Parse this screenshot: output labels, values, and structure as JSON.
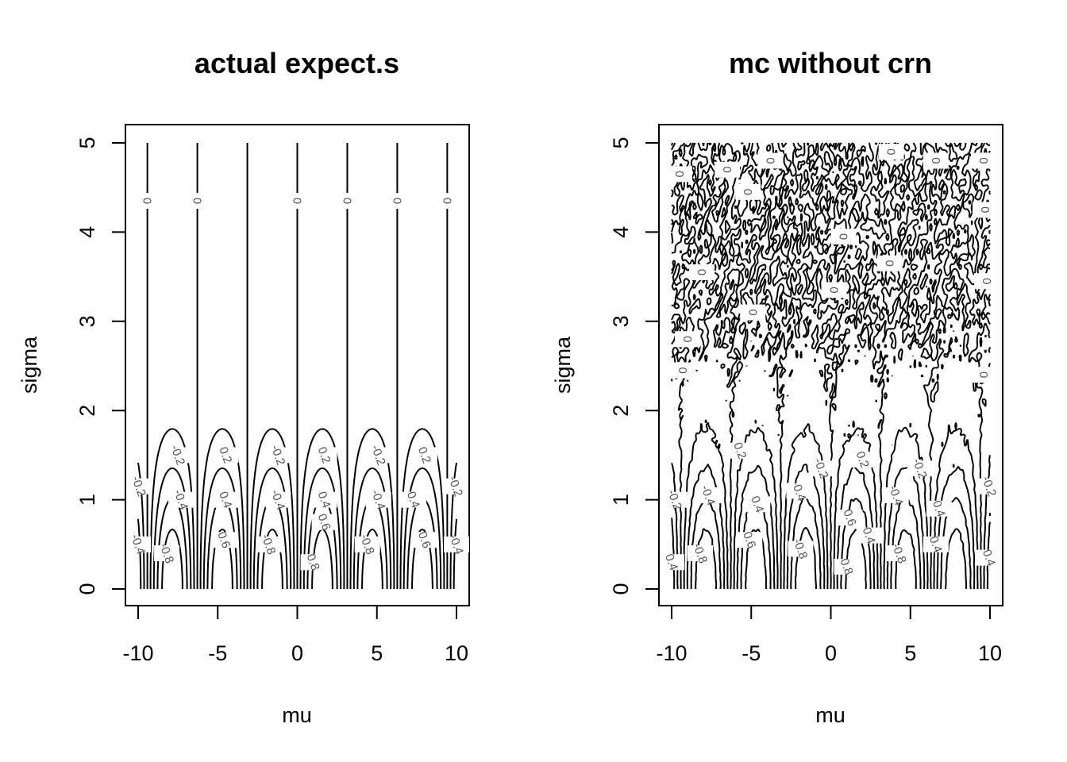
{
  "chart_data": [
    {
      "type": "contour",
      "title": "actual expect.s",
      "xlabel": "mu",
      "ylabel": "sigma",
      "xlim": [
        -10,
        10
      ],
      "ylim": [
        0,
        5
      ],
      "x_ticks": [
        -10,
        -5,
        0,
        5,
        10
      ],
      "y_ticks": [
        0,
        1,
        2,
        3,
        4,
        5
      ],
      "contour_levels": [
        -0.8,
        -0.6,
        -0.4,
        -0.2,
        0,
        0.2,
        0.4,
        0.6,
        0.8
      ],
      "grid": false,
      "zero_contour_mu": [
        -9.42,
        -6.28,
        -3.14,
        0,
        3.14,
        6.28,
        9.42
      ],
      "labels": [
        {
          "text": "0",
          "mu": -9.42,
          "sigma": 4.35
        },
        {
          "text": "0",
          "mu": -6.28,
          "sigma": 4.35
        },
        {
          "text": "0",
          "mu": 0,
          "sigma": 4.35
        },
        {
          "text": "0",
          "mu": 3.14,
          "sigma": 4.35
        },
        {
          "text": "0",
          "mu": 6.28,
          "sigma": 4.35
        },
        {
          "text": "0",
          "mu": 9.42,
          "sigma": 4.35
        },
        {
          "text": "-0.2",
          "mu": -7.5,
          "sigma": 1.5
        },
        {
          "text": "0.2",
          "mu": -4.5,
          "sigma": 1.5
        },
        {
          "text": "-0.2",
          "mu": -1.2,
          "sigma": 1.5
        },
        {
          "text": "0.2",
          "mu": 1.7,
          "sigma": 1.5
        },
        {
          "text": "-0.2",
          "mu": 5.1,
          "sigma": 1.5
        },
        {
          "text": "0.2",
          "mu": 8.0,
          "sigma": 1.5
        },
        {
          "text": "-0.2",
          "mu": -9.95,
          "sigma": 1.15
        },
        {
          "text": "-0.2",
          "mu": 9.95,
          "sigma": 1.15
        },
        {
          "text": "-0.4",
          "mu": -7.3,
          "sigma": 1.0
        },
        {
          "text": "0.4",
          "mu": -4.5,
          "sigma": 1.0
        },
        {
          "text": "-0.4",
          "mu": -1.2,
          "sigma": 1.0
        },
        {
          "text": "0.4",
          "mu": 1.7,
          "sigma": 1.0
        },
        {
          "text": "-0.4",
          "mu": 5.1,
          "sigma": 1.0
        },
        {
          "text": "0.4",
          "mu": 7.3,
          "sigma": 1.0
        },
        {
          "text": "-0.4",
          "mu": -10.0,
          "sigma": 0.5
        },
        {
          "text": "-0.4",
          "mu": 10.0,
          "sigma": 0.5
        },
        {
          "text": "0.6",
          "mu": -4.6,
          "sigma": 0.55
        },
        {
          "text": "0.6",
          "mu": 1.7,
          "sigma": 0.75
        },
        {
          "text": "0.6",
          "mu": 8.0,
          "sigma": 0.55
        },
        {
          "text": "0.8",
          "mu": 1.0,
          "sigma": 0.3
        },
        {
          "text": "-0.8",
          "mu": -8.2,
          "sigma": 0.4
        },
        {
          "text": "-0.8",
          "mu": -1.8,
          "sigma": 0.5
        },
        {
          "text": "-0.8",
          "mu": 4.4,
          "sigma": 0.5
        }
      ]
    },
    {
      "type": "contour",
      "title": "mc without crn",
      "xlabel": "mu",
      "ylabel": "sigma",
      "xlim": [
        -10,
        10
      ],
      "ylim": [
        0,
        5
      ],
      "x_ticks": [
        -10,
        -5,
        0,
        5,
        10
      ],
      "y_ticks": [
        0,
        1,
        2,
        3,
        4,
        5
      ],
      "contour_levels": [
        -0.8,
        -0.6,
        -0.4,
        -0.2,
        0,
        0.2,
        0.4,
        0.6,
        0.8
      ],
      "grid": false,
      "labels": [
        {
          "text": "0",
          "mu": -9.5,
          "sigma": 4.65
        },
        {
          "text": "0",
          "mu": -6.5,
          "sigma": 4.7
        },
        {
          "text": "0",
          "mu": -3.8,
          "sigma": 4.8
        },
        {
          "text": "0",
          "mu": 3.8,
          "sigma": 4.9
        },
        {
          "text": "0",
          "mu": 6.6,
          "sigma": 4.8
        },
        {
          "text": "0",
          "mu": 9.6,
          "sigma": 4.8
        },
        {
          "text": "0",
          "mu": -5.2,
          "sigma": 4.45
        },
        {
          "text": "0",
          "mu": 0.8,
          "sigma": 3.95
        },
        {
          "text": "0",
          "mu": 3.7,
          "sigma": 3.65
        },
        {
          "text": "0",
          "mu": 9.7,
          "sigma": 4.25
        },
        {
          "text": "0",
          "mu": -8.1,
          "sigma": 3.55
        },
        {
          "text": "0",
          "mu": -4.9,
          "sigma": 3.1
        },
        {
          "text": "0",
          "mu": 0.2,
          "sigma": 3.35
        },
        {
          "text": "0",
          "mu": 9.8,
          "sigma": 3.45
        },
        {
          "text": "0",
          "mu": -9.0,
          "sigma": 2.8
        },
        {
          "text": "0",
          "mu": -9.3,
          "sigma": 2.45
        },
        {
          "text": "0",
          "mu": 9.6,
          "sigma": 2.4
        },
        {
          "text": "-0.2",
          "mu": -9.8,
          "sigma": 1.0
        },
        {
          "text": "0.2",
          "mu": -5.7,
          "sigma": 1.55
        },
        {
          "text": "-0.2",
          "mu": -0.6,
          "sigma": 1.35
        },
        {
          "text": "0.2",
          "mu": 2.0,
          "sigma": 1.45
        },
        {
          "text": "-0.2",
          "mu": 5.6,
          "sigma": 1.35
        },
        {
          "text": "-0.2",
          "mu": 9.95,
          "sigma": 1.15
        },
        {
          "text": "-0.4",
          "mu": -7.7,
          "sigma": 1.05
        },
        {
          "text": "0.4",
          "mu": -4.6,
          "sigma": 0.95
        },
        {
          "text": "-0.4",
          "mu": -2.0,
          "sigma": 1.1
        },
        {
          "text": "-0.4",
          "mu": 4.1,
          "sigma": 1.05
        },
        {
          "text": "0.4",
          "mu": -10.0,
          "sigma": 0.3
        },
        {
          "text": "0.4",
          "mu": 9.95,
          "sigma": 0.35
        },
        {
          "text": "0.4",
          "mu": 2.4,
          "sigma": 0.6
        },
        {
          "text": "0.4",
          "mu": 6.6,
          "sigma": 0.5
        },
        {
          "text": "0.6",
          "mu": -5.1,
          "sigma": 0.55
        },
        {
          "text": "0.6",
          "mu": 1.2,
          "sigma": 0.8
        },
        {
          "text": "0.4",
          "mu": 6.8,
          "sigma": 0.9
        },
        {
          "text": "-0.8",
          "mu": -8.2,
          "sigma": 0.4
        },
        {
          "text": "-0.8",
          "mu": -1.9,
          "sigma": 0.45
        },
        {
          "text": "-0.8",
          "mu": 4.3,
          "sigma": 0.4
        },
        {
          "text": "0.8",
          "mu": 1.0,
          "sigma": 0.25
        }
      ]
    }
  ]
}
